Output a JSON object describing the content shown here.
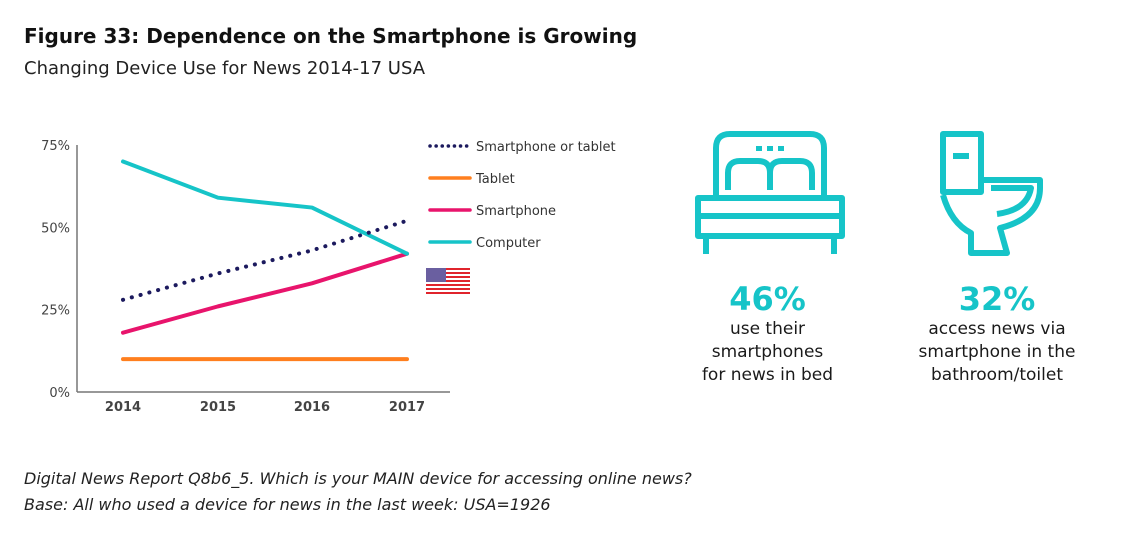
{
  "title": "Figure 33: Dependence on the Smartphone is Growing",
  "subtitle": "Changing Device Use for News 2014-17 USA",
  "chart_data": {
    "type": "line",
    "categories": [
      "2014",
      "2015",
      "2016",
      "2017"
    ],
    "ylim": [
      0,
      75
    ],
    "yticks": [
      "0%",
      "25%",
      "50%",
      "75%"
    ],
    "ytick_values": [
      0,
      25,
      50,
      75
    ],
    "grid": false,
    "legend_position": "right",
    "series": [
      {
        "name": "Smartphone or tablet",
        "values": [
          28,
          36,
          43,
          52
        ],
        "color": "#1c1a5e",
        "style": "dotted"
      },
      {
        "name": "Tablet",
        "values": [
          10,
          10,
          10,
          10
        ],
        "color": "#ff7f1e",
        "style": "solid"
      },
      {
        "name": "Smartphone",
        "values": [
          18,
          26,
          33,
          42
        ],
        "color": "#e8146c",
        "style": "solid"
      },
      {
        "name": "Computer",
        "values": [
          70,
          59,
          56,
          42
        ],
        "color": "#16c4c8",
        "style": "solid"
      }
    ]
  },
  "flag_icon": "us-flag-icon",
  "stats": [
    {
      "icon": "bed-icon",
      "value": "46%",
      "lines": [
        "use their",
        "smartphones",
        "for news in bed"
      ]
    },
    {
      "icon": "toilet-icon",
      "value": "32%",
      "lines": [
        "access news via",
        "smartphone in the",
        "bathroom/toilet"
      ]
    }
  ],
  "notes": [
    "Digital News Report Q8b6_5. Which is your MAIN device for accessing online news?",
    "Base: All who used a device for news in the last week: USA=1926"
  ]
}
